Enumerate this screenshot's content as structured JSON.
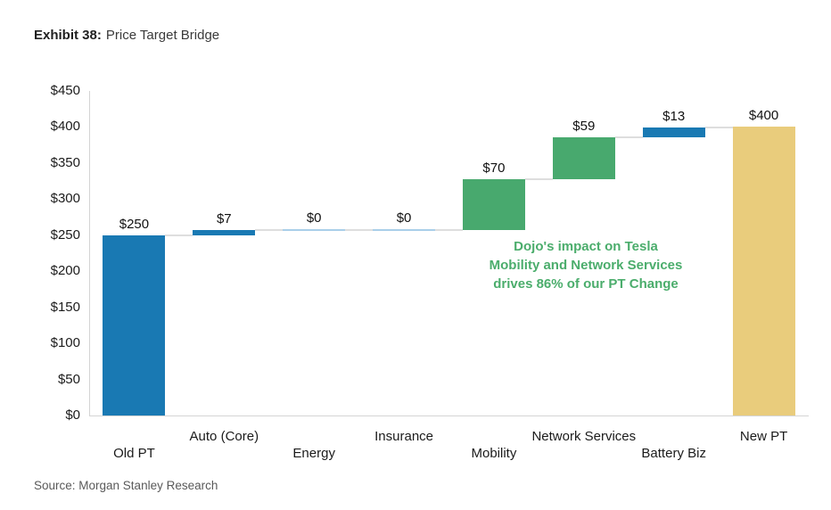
{
  "header": {
    "exhibit_label": "Exhibit 38:",
    "title": "Price Target Bridge"
  },
  "footer": {
    "source": "Source: Morgan Stanley Research"
  },
  "chart_data": {
    "type": "bar",
    "subtype": "waterfall",
    "title": "Price Target Bridge",
    "xlabel": "",
    "ylabel": "",
    "ylim": [
      0,
      450
    ],
    "grid": "off",
    "legend": "none",
    "y_ticks": [
      {
        "value": 450,
        "label": "$450"
      },
      {
        "value": 400,
        "label": "$400"
      },
      {
        "value": 350,
        "label": "$350"
      },
      {
        "value": 300,
        "label": "$300"
      },
      {
        "value": 250,
        "label": "$250"
      },
      {
        "value": 200,
        "label": "$200"
      },
      {
        "value": 150,
        "label": "$150"
      },
      {
        "value": 100,
        "label": "$100"
      },
      {
        "value": 50,
        "label": "$50"
      },
      {
        "value": 0,
        "label": "$0"
      }
    ],
    "categories": [
      "Old PT",
      "Auto (Core)",
      "Energy",
      "Insurance",
      "Mobility",
      "Network Services",
      "Battery Biz",
      "New PT"
    ],
    "values": [
      250,
      7,
      0,
      0,
      70,
      59,
      13,
      400
    ],
    "segments": [
      {
        "label": "Old PT",
        "value": 250,
        "value_label": "$250",
        "start": 0,
        "end": 250,
        "color": "blue",
        "kind": "total"
      },
      {
        "label": "Auto (Core)",
        "value": 7,
        "value_label": "$7",
        "start": 250,
        "end": 257,
        "color": "blue",
        "kind": "delta"
      },
      {
        "label": "Energy",
        "value": 0,
        "value_label": "$0",
        "start": 257,
        "end": 257,
        "color": "zero",
        "kind": "delta"
      },
      {
        "label": "Insurance",
        "value": 0,
        "value_label": "$0",
        "start": 257,
        "end": 257,
        "color": "zero",
        "kind": "delta"
      },
      {
        "label": "Mobility",
        "value": 70,
        "value_label": "$70",
        "start": 257,
        "end": 327,
        "color": "green",
        "kind": "delta"
      },
      {
        "label": "Network Services",
        "value": 59,
        "value_label": "$59",
        "start": 327,
        "end": 386,
        "color": "green",
        "kind": "delta"
      },
      {
        "label": "Battery Biz",
        "value": 13,
        "value_label": "$13",
        "start": 386,
        "end": 399,
        "color": "blue",
        "kind": "delta"
      },
      {
        "label": "New PT",
        "value": 400,
        "value_label": "$400",
        "start": 0,
        "end": 400,
        "color": "tan",
        "kind": "total"
      }
    ],
    "colors": {
      "blue": "#1979b3",
      "green": "#48a96e",
      "tan": "#e9cc7c",
      "zero": "#a9cfe9",
      "connector": "#dedede",
      "axis": "#d4d4d4",
      "annotation_green": "#4bad6c"
    },
    "annotation": {
      "color": "#4bad6c",
      "lines": [
        "Dojo's impact on Tesla",
        "Mobility and Network Services",
        "drives 86% of our PT Change"
      ]
    }
  }
}
